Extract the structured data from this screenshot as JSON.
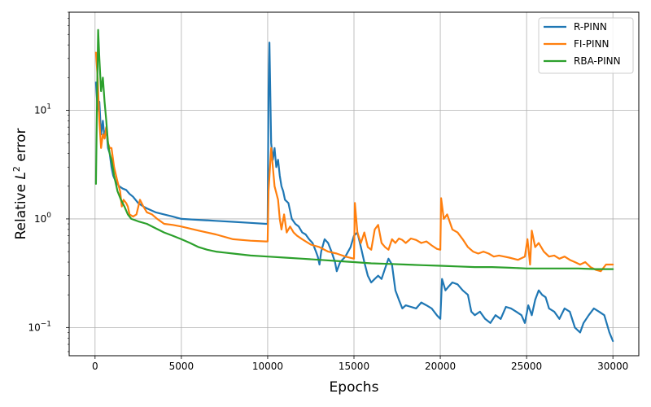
{
  "chart_data": {
    "type": "line",
    "title": "",
    "xlabel": "Epochs",
    "ylabel": "Relative L² error",
    "ylabel_parts": {
      "prefix": "Relative ",
      "symbol": "L",
      "superscript": "2",
      "suffix": " error"
    },
    "xlim": [
      -1500,
      31500
    ],
    "ylim": [
      0.055,
      80
    ],
    "y_scale": "log",
    "grid": true,
    "legend_position": "top-right",
    "x_ticks": [
      0,
      5000,
      10000,
      15000,
      20000,
      25000,
      30000
    ],
    "x_tick_labels": [
      "0",
      "5000",
      "10000",
      "15000",
      "20000",
      "25000",
      "30000"
    ],
    "y_ticks": [
      0.1,
      1,
      10
    ],
    "y_tick_labels": [
      {
        "base": "10",
        "exp": "−1"
      },
      {
        "base": "10",
        "exp": "0"
      },
      {
        "base": "10",
        "exp": "1"
      }
    ],
    "series": [
      {
        "name": "R-PINN",
        "color": "#1f77b4",
        "points": [
          [
            50,
            18
          ],
          [
            150,
            10
          ],
          [
            250,
            12
          ],
          [
            350,
            6
          ],
          [
            450,
            8
          ],
          [
            550,
            5.5
          ],
          [
            650,
            7
          ],
          [
            750,
            4.5
          ],
          [
            850,
            4
          ],
          [
            950,
            3
          ],
          [
            1050,
            2.5
          ],
          [
            1200,
            2.2
          ],
          [
            1400,
            2.0
          ],
          [
            1600,
            1.9
          ],
          [
            1800,
            1.85
          ],
          [
            2000,
            1.7
          ],
          [
            2200,
            1.6
          ],
          [
            2500,
            1.4
          ],
          [
            2800,
            1.3
          ],
          [
            3000,
            1.25
          ],
          [
            3500,
            1.15
          ],
          [
            4000,
            1.1
          ],
          [
            4500,
            1.05
          ],
          [
            5000,
            1.0
          ],
          [
            5500,
            0.99
          ],
          [
            6000,
            0.98
          ],
          [
            7000,
            0.96
          ],
          [
            8000,
            0.94
          ],
          [
            9000,
            0.92
          ],
          [
            9900,
            0.9
          ],
          [
            10000,
            0.9
          ],
          [
            10050,
            15
          ],
          [
            10100,
            42
          ],
          [
            10200,
            5
          ],
          [
            10300,
            3.5
          ],
          [
            10400,
            4.5
          ],
          [
            10500,
            3.0
          ],
          [
            10600,
            3.5
          ],
          [
            10700,
            2.5
          ],
          [
            10800,
            2.0
          ],
          [
            10900,
            1.8
          ],
          [
            11000,
            1.5
          ],
          [
            11200,
            1.4
          ],
          [
            11400,
            1.0
          ],
          [
            11600,
            0.9
          ],
          [
            11800,
            0.85
          ],
          [
            12000,
            0.75
          ],
          [
            12200,
            0.72
          ],
          [
            12400,
            0.65
          ],
          [
            12600,
            0.6
          ],
          [
            12800,
            0.5
          ],
          [
            12900,
            0.45
          ],
          [
            13000,
            0.38
          ],
          [
            13100,
            0.5
          ],
          [
            13300,
            0.65
          ],
          [
            13500,
            0.6
          ],
          [
            13700,
            0.5
          ],
          [
            13900,
            0.4
          ],
          [
            14000,
            0.33
          ],
          [
            14200,
            0.4
          ],
          [
            14500,
            0.45
          ],
          [
            14800,
            0.55
          ],
          [
            15000,
            0.7
          ],
          [
            15200,
            0.75
          ],
          [
            15400,
            0.55
          ],
          [
            15600,
            0.4
          ],
          [
            15800,
            0.3
          ],
          [
            16000,
            0.26
          ],
          [
            16200,
            0.28
          ],
          [
            16400,
            0.3
          ],
          [
            16600,
            0.28
          ],
          [
            16800,
            0.35
          ],
          [
            17000,
            0.43
          ],
          [
            17200,
            0.38
          ],
          [
            17400,
            0.22
          ],
          [
            17600,
            0.18
          ],
          [
            17800,
            0.15
          ],
          [
            18000,
            0.16
          ],
          [
            18300,
            0.155
          ],
          [
            18600,
            0.15
          ],
          [
            18900,
            0.17
          ],
          [
            19200,
            0.16
          ],
          [
            19500,
            0.15
          ],
          [
            19800,
            0.13
          ],
          [
            20000,
            0.12
          ],
          [
            20100,
            0.28
          ],
          [
            20300,
            0.22
          ],
          [
            20500,
            0.24
          ],
          [
            20700,
            0.26
          ],
          [
            21000,
            0.25
          ],
          [
            21300,
            0.22
          ],
          [
            21600,
            0.2
          ],
          [
            21800,
            0.14
          ],
          [
            22000,
            0.13
          ],
          [
            22300,
            0.14
          ],
          [
            22600,
            0.12
          ],
          [
            22900,
            0.11
          ],
          [
            23200,
            0.13
          ],
          [
            23500,
            0.12
          ],
          [
            23800,
            0.155
          ],
          [
            24100,
            0.15
          ],
          [
            24400,
            0.14
          ],
          [
            24700,
            0.13
          ],
          [
            24900,
            0.11
          ],
          [
            25100,
            0.16
          ],
          [
            25300,
            0.13
          ],
          [
            25500,
            0.18
          ],
          [
            25700,
            0.22
          ],
          [
            25900,
            0.2
          ],
          [
            26100,
            0.19
          ],
          [
            26300,
            0.15
          ],
          [
            26600,
            0.14
          ],
          [
            26900,
            0.12
          ],
          [
            27200,
            0.15
          ],
          [
            27500,
            0.14
          ],
          [
            27800,
            0.1
          ],
          [
            28100,
            0.09
          ],
          [
            28300,
            0.11
          ],
          [
            28600,
            0.13
          ],
          [
            28900,
            0.15
          ],
          [
            29200,
            0.14
          ],
          [
            29500,
            0.13
          ],
          [
            29800,
            0.09
          ],
          [
            30000,
            0.075
          ]
        ]
      },
      {
        "name": "FI-PINN",
        "color": "#ff7f0e",
        "points": [
          [
            50,
            34
          ],
          [
            150,
            20
          ],
          [
            250,
            8
          ],
          [
            350,
            4.5
          ],
          [
            450,
            6
          ],
          [
            550,
            5.5
          ],
          [
            650,
            7
          ],
          [
            750,
            5
          ],
          [
            850,
            4.5
          ],
          [
            950,
            4.5
          ],
          [
            1100,
            3
          ],
          [
            1300,
            2.2
          ],
          [
            1450,
            1.8
          ],
          [
            1550,
            1.3
          ],
          [
            1650,
            1.5
          ],
          [
            1800,
            1.4
          ],
          [
            1900,
            1.3
          ],
          [
            2000,
            1.1
          ],
          [
            2200,
            1.05
          ],
          [
            2400,
            1.1
          ],
          [
            2600,
            1.5
          ],
          [
            2800,
            1.3
          ],
          [
            3000,
            1.15
          ],
          [
            3300,
            1.1
          ],
          [
            3600,
            1.0
          ],
          [
            4000,
            0.9
          ],
          [
            4500,
            0.88
          ],
          [
            5000,
            0.85
          ],
          [
            6000,
            0.78
          ],
          [
            7000,
            0.72
          ],
          [
            8000,
            0.65
          ],
          [
            9000,
            0.63
          ],
          [
            9900,
            0.62
          ],
          [
            10000,
            0.62
          ],
          [
            10050,
            1.8
          ],
          [
            10200,
            4.5
          ],
          [
            10400,
            2.0
          ],
          [
            10600,
            1.5
          ],
          [
            10700,
            1.0
          ],
          [
            10800,
            0.8
          ],
          [
            10950,
            1.1
          ],
          [
            11100,
            0.75
          ],
          [
            11300,
            0.85
          ],
          [
            11500,
            0.75
          ],
          [
            11700,
            0.7
          ],
          [
            12000,
            0.65
          ],
          [
            12500,
            0.58
          ],
          [
            13000,
            0.55
          ],
          [
            13500,
            0.5
          ],
          [
            14000,
            0.48
          ],
          [
            14500,
            0.45
          ],
          [
            15000,
            0.43
          ],
          [
            15050,
            1.4
          ],
          [
            15200,
            0.75
          ],
          [
            15400,
            0.6
          ],
          [
            15600,
            0.75
          ],
          [
            15800,
            0.55
          ],
          [
            16000,
            0.52
          ],
          [
            16200,
            0.8
          ],
          [
            16400,
            0.88
          ],
          [
            16600,
            0.6
          ],
          [
            16800,
            0.55
          ],
          [
            17000,
            0.52
          ],
          [
            17200,
            0.65
          ],
          [
            17400,
            0.6
          ],
          [
            17600,
            0.66
          ],
          [
            17800,
            0.64
          ],
          [
            18000,
            0.6
          ],
          [
            18300,
            0.66
          ],
          [
            18600,
            0.64
          ],
          [
            18900,
            0.6
          ],
          [
            19200,
            0.62
          ],
          [
            19500,
            0.57
          ],
          [
            19800,
            0.53
          ],
          [
            20000,
            0.52
          ],
          [
            20050,
            1.55
          ],
          [
            20200,
            1.0
          ],
          [
            20400,
            1.1
          ],
          [
            20700,
            0.8
          ],
          [
            21000,
            0.75
          ],
          [
            21300,
            0.65
          ],
          [
            21600,
            0.55
          ],
          [
            21900,
            0.5
          ],
          [
            22200,
            0.48
          ],
          [
            22500,
            0.5
          ],
          [
            22800,
            0.48
          ],
          [
            23100,
            0.45
          ],
          [
            23400,
            0.46
          ],
          [
            23700,
            0.45
          ],
          [
            24000,
            0.44
          ],
          [
            24500,
            0.42
          ],
          [
            24900,
            0.45
          ],
          [
            25050,
            0.65
          ],
          [
            25200,
            0.38
          ],
          [
            25300,
            0.78
          ],
          [
            25500,
            0.55
          ],
          [
            25700,
            0.6
          ],
          [
            26000,
            0.5
          ],
          [
            26300,
            0.45
          ],
          [
            26600,
            0.46
          ],
          [
            26900,
            0.43
          ],
          [
            27200,
            0.45
          ],
          [
            27500,
            0.42
          ],
          [
            27800,
            0.4
          ],
          [
            28100,
            0.38
          ],
          [
            28400,
            0.4
          ],
          [
            28700,
            0.36
          ],
          [
            29000,
            0.34
          ],
          [
            29300,
            0.33
          ],
          [
            29600,
            0.38
          ],
          [
            30000,
            0.38
          ]
        ]
      },
      {
        "name": "RBA-PINN",
        "color": "#2ca02c",
        "points": [
          [
            50,
            2.1
          ],
          [
            120,
            15
          ],
          [
            180,
            55
          ],
          [
            250,
            30
          ],
          [
            350,
            15
          ],
          [
            450,
            20
          ],
          [
            550,
            12
          ],
          [
            650,
            8
          ],
          [
            750,
            5
          ],
          [
            850,
            4
          ],
          [
            950,
            3.5
          ],
          [
            1100,
            2.5
          ],
          [
            1300,
            1.8
          ],
          [
            1500,
            1.5
          ],
          [
            1700,
            1.3
          ],
          [
            1900,
            1.1
          ],
          [
            2100,
            1.0
          ],
          [
            2500,
            0.95
          ],
          [
            3000,
            0.9
          ],
          [
            3500,
            0.82
          ],
          [
            4000,
            0.75
          ],
          [
            4500,
            0.7
          ],
          [
            5000,
            0.65
          ],
          [
            5500,
            0.6
          ],
          [
            6000,
            0.55
          ],
          [
            6500,
            0.52
          ],
          [
            7000,
            0.5
          ],
          [
            7500,
            0.49
          ],
          [
            8000,
            0.48
          ],
          [
            9000,
            0.46
          ],
          [
            10000,
            0.45
          ],
          [
            11000,
            0.44
          ],
          [
            12000,
            0.43
          ],
          [
            13000,
            0.42
          ],
          [
            14000,
            0.41
          ],
          [
            15000,
            0.4
          ],
          [
            16000,
            0.39
          ],
          [
            17000,
            0.385
          ],
          [
            18000,
            0.38
          ],
          [
            19000,
            0.375
          ],
          [
            20000,
            0.37
          ],
          [
            21000,
            0.365
          ],
          [
            22000,
            0.36
          ],
          [
            23000,
            0.36
          ],
          [
            24000,
            0.355
          ],
          [
            25000,
            0.35
          ],
          [
            26000,
            0.35
          ],
          [
            27000,
            0.35
          ],
          [
            28000,
            0.35
          ],
          [
            29000,
            0.345
          ],
          [
            30000,
            0.345
          ]
        ]
      }
    ]
  }
}
